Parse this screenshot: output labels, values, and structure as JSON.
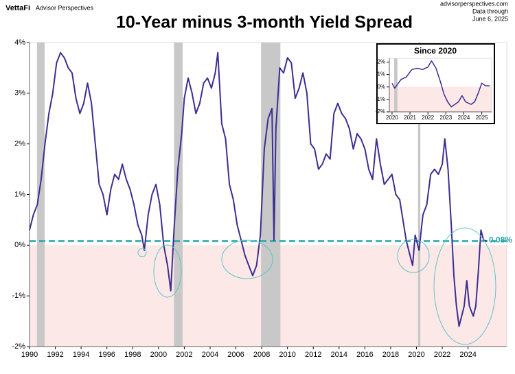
{
  "chart_data": [
    {
      "type": "line",
      "title": "10-Year minus 3-month Yield Spread",
      "brand": "VettaFi",
      "brand_subtitle": "Advisor Perspectives",
      "source_lines": [
        "advisorperspectives.com",
        "Data through",
        "June 6, 2025"
      ],
      "x": [
        1990.0,
        1990.3,
        1990.6,
        1990.9,
        1991.2,
        1991.5,
        1991.8,
        1992.1,
        1992.4,
        1992.7,
        1993.0,
        1993.3,
        1993.6,
        1993.9,
        1994.2,
        1994.5,
        1994.8,
        1995.1,
        1995.4,
        1995.7,
        1996.0,
        1996.3,
        1996.6,
        1996.9,
        1997.2,
        1997.5,
        1997.8,
        1998.1,
        1998.4,
        1998.7,
        1998.9,
        1999.2,
        1999.5,
        1999.8,
        2000.1,
        2000.4,
        2000.7,
        2000.95,
        2001.2,
        2001.5,
        2001.8,
        2002.0,
        2002.3,
        2002.6,
        2002.9,
        2003.2,
        2003.5,
        2003.8,
        2004.1,
        2004.4,
        2004.6,
        2004.9,
        2005.2,
        2005.5,
        2005.8,
        2006.1,
        2006.4,
        2006.7,
        2007.0,
        2007.3,
        2007.6,
        2007.9,
        2008.2,
        2008.5,
        2008.8,
        2008.95,
        2009.1,
        2009.4,
        2009.7,
        2010.0,
        2010.3,
        2010.6,
        2010.9,
        2011.2,
        2011.5,
        2011.8,
        2012.1,
        2012.4,
        2012.7,
        2013.0,
        2013.3,
        2013.6,
        2013.9,
        2014.2,
        2014.5,
        2014.8,
        2015.1,
        2015.4,
        2015.7,
        2016.0,
        2016.3,
        2016.6,
        2016.9,
        2017.2,
        2017.5,
        2017.8,
        2018.1,
        2018.4,
        2018.7,
        2018.95,
        2019.2,
        2019.5,
        2019.7,
        2019.9,
        2020.2,
        2020.5,
        2020.8,
        2021.1,
        2021.4,
        2021.7,
        2022.0,
        2022.2,
        2022.45,
        2022.7,
        2022.9,
        2023.1,
        2023.3,
        2023.5,
        2023.7,
        2023.9,
        2024.1,
        2024.4,
        2024.6,
        2024.8,
        2025.0,
        2025.2,
        2025.45
      ],
      "series": [
        {
          "color": "#3b2e91",
          "values": [
            0.3,
            0.6,
            0.8,
            1.3,
            2.0,
            2.6,
            3.0,
            3.6,
            3.8,
            3.7,
            3.5,
            3.4,
            2.9,
            2.6,
            2.8,
            3.2,
            2.8,
            2.0,
            1.2,
            1.0,
            0.6,
            1.1,
            1.4,
            1.3,
            1.6,
            1.3,
            1.1,
            0.8,
            0.4,
            0.2,
            -0.1,
            0.6,
            1.0,
            1.2,
            0.8,
            0.0,
            -0.4,
            -0.9,
            0.3,
            1.5,
            2.2,
            2.9,
            3.3,
            3.0,
            2.6,
            2.8,
            3.2,
            3.3,
            3.1,
            3.4,
            3.8,
            2.4,
            2.1,
            1.2,
            0.9,
            0.4,
            0.1,
            -0.2,
            -0.4,
            -0.6,
            -0.4,
            0.2,
            1.9,
            2.5,
            2.7,
            0.1,
            2.3,
            3.5,
            3.4,
            3.7,
            3.6,
            2.9,
            3.1,
            3.4,
            3.0,
            2.0,
            1.9,
            1.5,
            1.6,
            1.8,
            1.7,
            2.6,
            2.8,
            2.6,
            2.5,
            2.3,
            1.9,
            2.2,
            2.1,
            1.9,
            1.5,
            1.3,
            2.1,
            1.6,
            1.2,
            1.3,
            1.4,
            1.0,
            0.9,
            0.5,
            0.1,
            -0.2,
            -0.4,
            0.2,
            -0.1,
            0.6,
            0.8,
            1.4,
            1.5,
            1.4,
            1.6,
            2.1,
            1.5,
            0.4,
            -0.6,
            -1.2,
            -1.6,
            -1.4,
            -1.2,
            -0.7,
            -1.2,
            -1.4,
            -1.2,
            -0.5,
            0.3,
            0.1,
            0.08
          ]
        }
      ],
      "xlim": [
        1990,
        2027
      ],
      "xticks": [
        1990,
        1992,
        1994,
        1996,
        1998,
        2000,
        2002,
        2004,
        2006,
        2008,
        2010,
        2012,
        2014,
        2016,
        2018,
        2020,
        2022,
        2024
      ],
      "ylim": [
        -2,
        4
      ],
      "yticks": [
        {
          "value": -2,
          "label": "-2%"
        },
        {
          "value": -1,
          "label": "-1%"
        },
        {
          "value": 0,
          "label": "0%"
        },
        {
          "value": 1,
          "label": "1%"
        },
        {
          "value": 2,
          "label": "2%"
        },
        {
          "value": 3,
          "label": "3%"
        },
        {
          "value": 4,
          "label": "4%"
        }
      ],
      "recessions": [
        [
          1990.58,
          1991.17
        ],
        [
          2001.2,
          2001.87
        ],
        [
          2007.95,
          2009.45
        ],
        [
          2020.12,
          2020.3
        ]
      ],
      "reference_line": {
        "value": 0.08,
        "label": "0.08%",
        "color": "#2aa7a7"
      }
    },
    {
      "type": "line",
      "title": "Since 2020",
      "x": [
        2020.0,
        2020.15,
        2020.3,
        2020.5,
        2020.8,
        2021.1,
        2021.4,
        2021.7,
        2022.0,
        2022.2,
        2022.45,
        2022.7,
        2022.9,
        2023.1,
        2023.3,
        2023.5,
        2023.7,
        2023.9,
        2024.1,
        2024.4,
        2024.6,
        2024.8,
        2025.0,
        2025.2,
        2025.45
      ],
      "series": [
        {
          "color": "#3b2e91",
          "values": [
            0.3,
            -0.1,
            0.2,
            0.6,
            0.8,
            1.4,
            1.5,
            1.4,
            1.6,
            2.1,
            1.5,
            0.4,
            -0.6,
            -1.2,
            -1.6,
            -1.4,
            -1.2,
            -0.7,
            -1.2,
            -1.4,
            -1.2,
            -0.5,
            0.3,
            0.1,
            0.08
          ]
        }
      ],
      "xlim": [
        2019.85,
        2025.55
      ],
      "xticks": [
        2020,
        2021,
        2022,
        2023,
        2024,
        2025
      ],
      "ylim": [
        -2,
        2.3
      ],
      "yticks": [
        {
          "value": -2,
          "label": "-2%"
        },
        {
          "value": -1,
          "label": "-1%"
        },
        {
          "value": 0,
          "label": "0%"
        },
        {
          "value": 1,
          "label": "1%"
        },
        {
          "value": 2,
          "label": "2%"
        }
      ],
      "recessions": [
        [
          2020.12,
          2020.3
        ]
      ]
    }
  ]
}
